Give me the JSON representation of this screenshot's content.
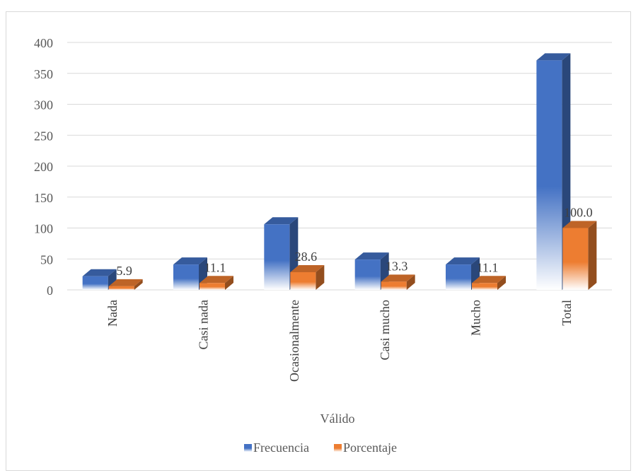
{
  "chart_data": {
    "type": "bar",
    "style": "3d-clustered-column",
    "categories": [
      "Nada",
      "Casi nada",
      "Ocasionalmente",
      "Casi mucho",
      "Mucho",
      "Total"
    ],
    "series": [
      {
        "name": "Frecuencia",
        "color": "#4472C4",
        "values": [
          22,
          41,
          106,
          49,
          41,
          371
        ],
        "data_labels": []
      },
      {
        "name": "Porcentaje",
        "color": "#ED7D31",
        "values": [
          5.9,
          11.1,
          28.6,
          13.3,
          11.1,
          100.0
        ],
        "data_labels": [
          "5.9",
          "11.1",
          "28.6",
          "13.3",
          "11.1",
          "100.0"
        ]
      }
    ],
    "title": "",
    "xlabel": "Válido",
    "ylabel": "",
    "ylim": [
      0,
      400
    ],
    "yticks": [
      "0",
      "50",
      "100",
      "150",
      "200",
      "250",
      "300",
      "350",
      "400"
    ],
    "grid": true,
    "legend": "bottom"
  }
}
